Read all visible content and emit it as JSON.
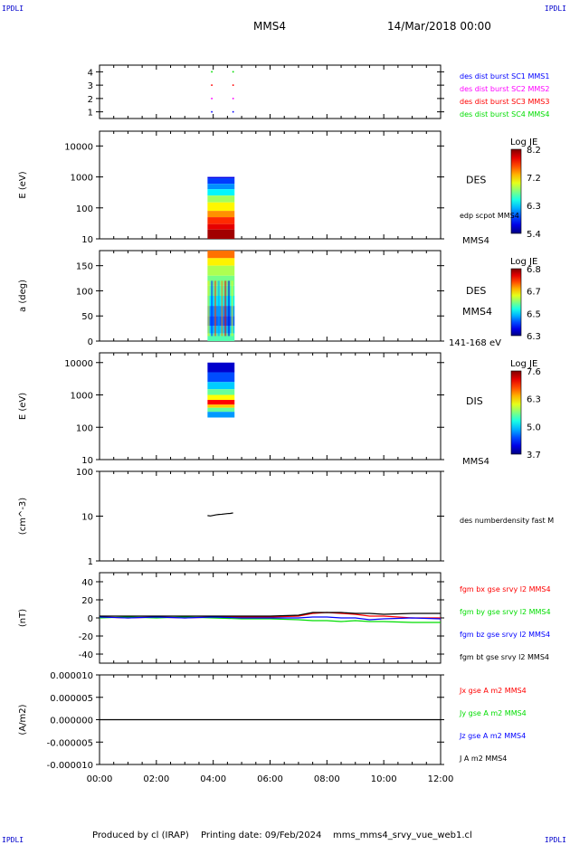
{
  "header": {
    "corner_tag": "IPDLI",
    "spacecraft": "MMS4",
    "datetime": "14/Mar/2018 00:00"
  },
  "footer": {
    "produced_by": "Produced by cl (IRAP)",
    "printing_date": "Printing date: 09/Feb/2024",
    "file": "mms_mms4_srvy_vue_web1.cl"
  },
  "colors": {
    "blue": "#0000ff",
    "magenta": "#ff00ff",
    "red": "#ff0000",
    "green": "#00dd00",
    "black": "#000000"
  },
  "chart_data": [
    {
      "id": "burst",
      "type": "scatter",
      "ylim": [
        0.5,
        4.5
      ],
      "ytick_labels": [
        "1",
        "2",
        "3",
        "4"
      ],
      "legend": [
        "des dist burst SC1 MMS1",
        "des dist burst SC2 MMS2",
        "des dist burst SC3 MMS3",
        "des dist burst SC4 MMS4"
      ],
      "series": [
        {
          "name": "des dist burst SC1 MMS1",
          "y": 1,
          "color": "blue",
          "x": [
            3.95,
            4.7
          ]
        },
        {
          "name": "des dist burst SC2 MMS2",
          "y": 2,
          "color": "magenta",
          "x": [
            3.95,
            4.7
          ]
        },
        {
          "name": "des dist burst SC3 MMS3",
          "y": 3,
          "color": "red",
          "x": [
            3.95,
            4.7
          ]
        },
        {
          "name": "des dist burst SC4 MMS4",
          "y": 4,
          "color": "green",
          "x": [
            3.95,
            4.7
          ]
        }
      ]
    },
    {
      "id": "des_energy",
      "type": "heatmap",
      "ylabel": "E (eV)",
      "scale": "log",
      "ylim": [
        10,
        30000
      ],
      "ytick_labels": [
        "10",
        "100",
        "1000",
        "10000"
      ],
      "label": "DES",
      "extra_label": "edp scpot MMS4",
      "bottom_label": "MMS4",
      "colorbar": {
        "title": "Log JE",
        "ticks": [
          "8.2",
          "7.2",
          "6.3",
          "5.4"
        ],
        "range": [
          5.4,
          8.4
        ]
      },
      "data_x_range": [
        3.8,
        4.75
      ],
      "rows": [
        {
          "y": 900,
          "y2": 1000,
          "v": 5.7
        },
        {
          "y": 600,
          "y2": 900,
          "v": 5.95
        },
        {
          "y": 400,
          "y2": 600,
          "v": 6.2
        },
        {
          "y": 250,
          "y2": 400,
          "v": 6.5
        },
        {
          "y": 150,
          "y2": 250,
          "v": 7.0
        },
        {
          "y": 80,
          "y2": 150,
          "v": 7.3
        },
        {
          "y": 50,
          "y2": 80,
          "v": 7.6
        },
        {
          "y": 30,
          "y2": 50,
          "v": 7.9
        },
        {
          "y": 20,
          "y2": 30,
          "v": 8.1
        },
        {
          "y": 10,
          "y2": 20,
          "v": 8.3
        }
      ]
    },
    {
      "id": "des_pitch",
      "type": "heatmap",
      "ylabel": "a (deg)",
      "scale": "linear",
      "ylim": [
        0,
        180
      ],
      "ytick_labels": [
        "0",
        "50",
        "100",
        "150"
      ],
      "label": "DES",
      "extra_label": "MMS4",
      "bottom_label": "141-168 eV",
      "colorbar": {
        "title": "Log JE",
        "ticks": [
          "6.8",
          "6.7",
          "6.5",
          "6.3"
        ],
        "range": [
          6.3,
          6.85
        ]
      },
      "data_x_range": [
        3.8,
        4.75
      ],
      "rows": [
        {
          "y": 165,
          "y2": 180,
          "v": 6.72
        },
        {
          "y": 150,
          "y2": 165,
          "v": 6.65
        },
        {
          "y": 130,
          "y2": 150,
          "v": 6.6
        },
        {
          "y": 110,
          "y2": 130,
          "v": 6.57
        },
        {
          "y": 90,
          "y2": 110,
          "v": 6.55
        },
        {
          "y": 70,
          "y2": 90,
          "v": 6.5
        },
        {
          "y": 50,
          "y2": 70,
          "v": 6.45
        },
        {
          "y": 30,
          "y2": 50,
          "v": 6.42
        },
        {
          "y": 15,
          "y2": 30,
          "v": 6.48
        },
        {
          "y": 0,
          "y2": 15,
          "v": 6.55
        }
      ]
    },
    {
      "id": "dis_energy",
      "type": "heatmap",
      "ylabel": "E (eV)",
      "scale": "log",
      "ylim": [
        10,
        20000
      ],
      "ytick_labels": [
        "10",
        "100",
        "1000",
        "10000"
      ],
      "label": "DIS",
      "bottom_label": "MMS4",
      "colorbar": {
        "title": "Log JE",
        "ticks": [
          "7.6",
          "6.3",
          "5.0",
          "3.7"
        ],
        "range": [
          3.7,
          7.7
        ]
      },
      "data_x_range": [
        3.8,
        4.75
      ],
      "rows": [
        {
          "y": 5000,
          "y2": 10000,
          "v": 4.0
        },
        {
          "y": 2500,
          "y2": 5000,
          "v": 4.5
        },
        {
          "y": 1500,
          "y2": 2500,
          "v": 5.0
        },
        {
          "y": 1000,
          "y2": 1500,
          "v": 5.6
        },
        {
          "y": 700,
          "y2": 1000,
          "v": 6.2
        },
        {
          "y": 500,
          "y2": 700,
          "v": 7.2
        },
        {
          "y": 400,
          "y2": 500,
          "v": 6.4
        },
        {
          "y": 300,
          "y2": 400,
          "v": 5.6
        },
        {
          "y": 200,
          "y2": 300,
          "v": 4.8
        }
      ]
    },
    {
      "id": "density",
      "type": "line",
      "ylabel": "(cm^-3)",
      "scale": "log",
      "ylim": [
        1,
        100
      ],
      "ytick_labels": [
        "1",
        "10",
        "100"
      ],
      "legend": [
        "des numberdensity fast M"
      ],
      "series": [
        {
          "name": "des numberdensity fast M",
          "color": "black",
          "x": [
            3.8,
            3.9,
            4.0,
            4.1,
            4.2,
            4.3,
            4.4,
            4.5,
            4.6,
            4.7
          ],
          "values": [
            10.3,
            10.1,
            10.4,
            10.7,
            10.9,
            11.0,
            11.2,
            11.4,
            11.5,
            11.8
          ]
        }
      ]
    },
    {
      "id": "fgm",
      "type": "line",
      "ylabel": "(nT)",
      "ylim": [
        -50,
        50
      ],
      "ytick_labels": [
        "-40",
        "-20",
        "0",
        "20",
        "40"
      ],
      "legend": [
        "fgm bx gse srvy l2 MMS4",
        "fgm by gse srvy l2 MMS4",
        "fgm bz gse srvy l2 MMS4",
        "fgm bt gse srvy l2 MMS4"
      ],
      "x": [
        0,
        1,
        2,
        3,
        4,
        5,
        6,
        7,
        7.5,
        8,
        8.5,
        9,
        9.5,
        10,
        11,
        12
      ],
      "series": [
        {
          "name": "fgm bx gse srvy l2 MMS4",
          "color": "red",
          "values": [
            1,
            0,
            1,
            0,
            1,
            1,
            1,
            2,
            5,
            6,
            5,
            4,
            2,
            2,
            0,
            0
          ]
        },
        {
          "name": "fgm by gse srvy l2 MMS4",
          "color": "green",
          "values": [
            0,
            1,
            0,
            1,
            0,
            -1,
            -1,
            -2,
            -3,
            -3,
            -4,
            -3,
            -4,
            -4,
            -5,
            -5
          ]
        },
        {
          "name": "fgm bz gse srvy l2 MMS4",
          "color": "blue",
          "values": [
            1,
            0,
            1,
            0,
            1,
            0,
            0,
            0,
            1,
            1,
            0,
            0,
            -2,
            -1,
            0,
            -1
          ]
        },
        {
          "name": "fgm bt gse srvy l2 MMS4",
          "color": "black",
          "values": [
            2,
            2,
            2,
            2,
            2,
            2,
            2,
            3,
            6,
            6,
            6,
            5,
            5,
            4,
            5,
            5
          ]
        }
      ]
    },
    {
      "id": "current",
      "type": "line",
      "ylabel": "(A/m2)",
      "ylim": [
        -1e-05,
        1e-05
      ],
      "ytick_labels": [
        "-0.000010",
        "-0.000005",
        "0.000000",
        "0.000005",
        "0.000010"
      ],
      "legend": [
        "Jx gse A m2 MMS4",
        "Jy gse A m2 MMS4",
        "Jz gse A m2 MMS4",
        "J A m2 MMS4"
      ],
      "legend_colors": [
        "red",
        "green",
        "blue",
        "black"
      ],
      "x": [
        0,
        2,
        4,
        6,
        8,
        10,
        12
      ],
      "series": [
        {
          "name": "J A m2 MMS4",
          "color": "black",
          "values": [
            0,
            0,
            0,
            0,
            0,
            0,
            0
          ]
        }
      ]
    }
  ],
  "xaxis": {
    "xlim": [
      0,
      12
    ],
    "tick_labels": [
      "00:00",
      "02:00",
      "04:00",
      "06:00",
      "08:00",
      "10:00",
      "12:00"
    ]
  }
}
